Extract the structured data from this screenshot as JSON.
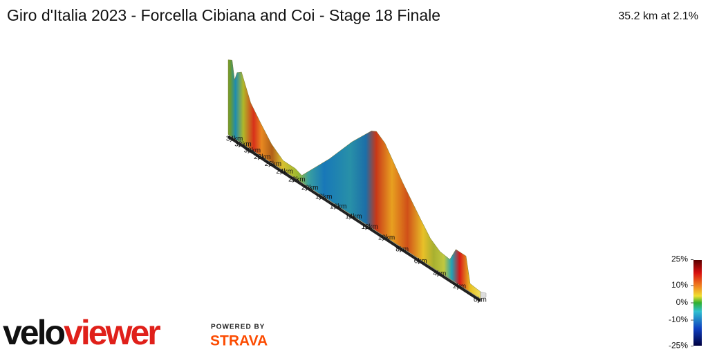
{
  "header": {
    "title": "Giro d'Italia 2023 - Forcella Cibiana and Coi - Stage 18 Finale",
    "summary": "35.2 km at 2.1%"
  },
  "profile": {
    "distance_ticks": [
      {
        "value": 0,
        "label": "0km"
      },
      {
        "value": 2,
        "label": "2km"
      },
      {
        "value": 4,
        "label": "4km"
      },
      {
        "value": 6,
        "label": "6km"
      },
      {
        "value": 8,
        "label": "8km"
      },
      {
        "value": 10,
        "label": "10km"
      },
      {
        "value": 12,
        "label": "12km"
      },
      {
        "value": 14,
        "label": "14km"
      },
      {
        "value": 16,
        "label": "16km"
      },
      {
        "value": 18,
        "label": "18km"
      },
      {
        "value": 20,
        "label": "20km"
      },
      {
        "value": 22,
        "label": "22km"
      },
      {
        "value": 24,
        "label": "24km"
      },
      {
        "value": 26,
        "label": "26km"
      },
      {
        "value": 28,
        "label": "28km"
      },
      {
        "value": 30,
        "label": "30km"
      },
      {
        "value": 32,
        "label": "32km"
      },
      {
        "value": 34,
        "label": "34km"
      }
    ]
  },
  "legend": {
    "ticks": [
      {
        "value": 25,
        "label": "25%"
      },
      {
        "value": 10,
        "label": "10%"
      },
      {
        "value": 0,
        "label": "0%"
      },
      {
        "value": -10,
        "label": "-10%"
      },
      {
        "value": -25,
        "label": "-25%"
      }
    ]
  },
  "branding": {
    "logo_a": "velo",
    "logo_b": "viewer",
    "powered": "POWERED BY",
    "partner": "STRAVA"
  }
}
